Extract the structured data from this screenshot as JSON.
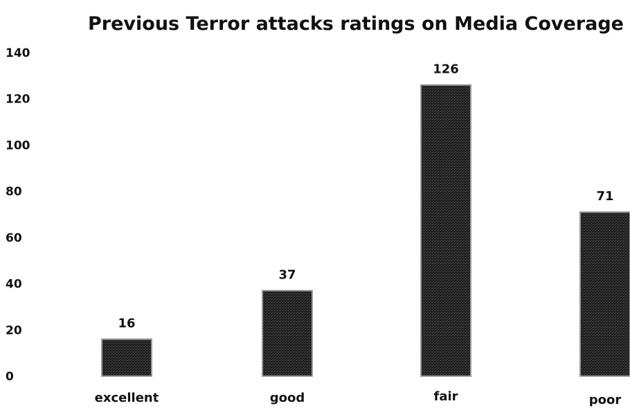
{
  "chart_data": {
    "type": "bar",
    "title": "Previous Terror attacks ratings on Media Coverage",
    "xlabel": "",
    "ylabel": "",
    "categories": [
      "excellent",
      "good",
      "fair",
      "poor"
    ],
    "values": [
      16,
      37,
      126,
      71
    ],
    "value_labels": [
      "16",
      "37",
      "126",
      "71"
    ],
    "y_ticks": [
      "0",
      "20",
      "40",
      "60",
      "80",
      "100",
      "120",
      "140"
    ],
    "ylim": [
      0,
      140
    ],
    "grid": false,
    "legend": "none",
    "bar_color": "#1e1e1e",
    "bar_border_color": "#9a9a9a"
  }
}
